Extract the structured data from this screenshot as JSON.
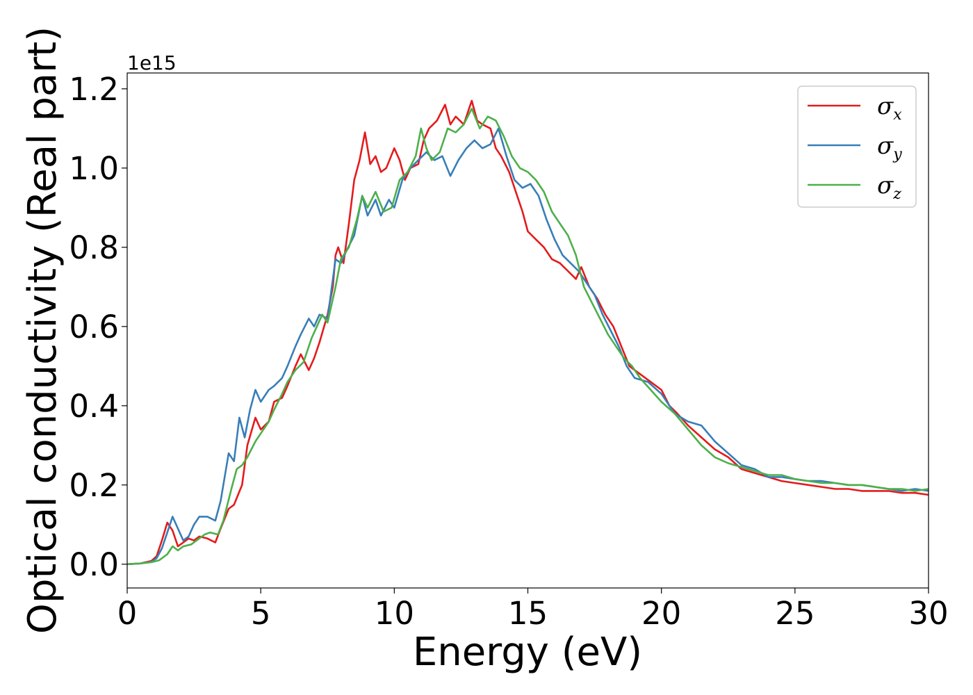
{
  "chart_data": {
    "type": "line",
    "xlabel": "Energy (eV)",
    "ylabel": "Optical conductivity (Real part)",
    "y_offset_label": "1e15",
    "xlim": [
      0,
      30
    ],
    "ylim": [
      -0.06,
      1.24
    ],
    "x_ticks": [
      0,
      5,
      10,
      15,
      20,
      25,
      30
    ],
    "x_tick_labels": [
      "0",
      "5",
      "10",
      "15",
      "20",
      "25",
      "30"
    ],
    "y_ticks": [
      0.0,
      0.2,
      0.4,
      0.6,
      0.8,
      1.0,
      1.2
    ],
    "y_tick_labels": [
      "0.0",
      "0.2",
      "0.4",
      "0.6",
      "0.8",
      "1.0",
      "1.2"
    ],
    "grid": false,
    "legend_position": "top-right",
    "series": [
      {
        "name": "σx",
        "legend_symbol": "σ",
        "legend_subscript": "x",
        "color": "#e41a1c",
        "points": [
          [
            0,
            0
          ],
          [
            0.5,
            0.002
          ],
          [
            0.9,
            0.008
          ],
          [
            1.1,
            0.02
          ],
          [
            1.3,
            0.06
          ],
          [
            1.5,
            0.105
          ],
          [
            1.7,
            0.085
          ],
          [
            1.9,
            0.045
          ],
          [
            2.1,
            0.055
          ],
          [
            2.3,
            0.065
          ],
          [
            2.5,
            0.06
          ],
          [
            2.7,
            0.07
          ],
          [
            3.0,
            0.065
          ],
          [
            3.3,
            0.055
          ],
          [
            3.5,
            0.09
          ],
          [
            3.8,
            0.14
          ],
          [
            4.0,
            0.15
          ],
          [
            4.3,
            0.2
          ],
          [
            4.5,
            0.3
          ],
          [
            4.8,
            0.37
          ],
          [
            5.0,
            0.34
          ],
          [
            5.3,
            0.36
          ],
          [
            5.5,
            0.41
          ],
          [
            5.8,
            0.42
          ],
          [
            6.0,
            0.45
          ],
          [
            6.3,
            0.5
          ],
          [
            6.5,
            0.53
          ],
          [
            6.8,
            0.49
          ],
          [
            7.0,
            0.52
          ],
          [
            7.2,
            0.56
          ],
          [
            7.5,
            0.63
          ],
          [
            7.7,
            0.7
          ],
          [
            7.8,
            0.78
          ],
          [
            7.9,
            0.8
          ],
          [
            8.1,
            0.76
          ],
          [
            8.3,
            0.86
          ],
          [
            8.5,
            0.97
          ],
          [
            8.7,
            1.02
          ],
          [
            8.9,
            1.09
          ],
          [
            9.1,
            1.01
          ],
          [
            9.3,
            1.03
          ],
          [
            9.5,
            0.99
          ],
          [
            9.7,
            1.0
          ],
          [
            10.0,
            1.05
          ],
          [
            10.2,
            1.02
          ],
          [
            10.4,
            0.97
          ],
          [
            10.6,
            1.0
          ],
          [
            10.9,
            1.01
          ],
          [
            11.1,
            1.07
          ],
          [
            11.3,
            1.1
          ],
          [
            11.6,
            1.12
          ],
          [
            11.9,
            1.16
          ],
          [
            12.1,
            1.11
          ],
          [
            12.3,
            1.13
          ],
          [
            12.6,
            1.11
          ],
          [
            12.8,
            1.15
          ],
          [
            12.9,
            1.17
          ],
          [
            13.1,
            1.12
          ],
          [
            13.3,
            1.11
          ],
          [
            13.6,
            1.1
          ],
          [
            13.8,
            1.05
          ],
          [
            14.0,
            1.03
          ],
          [
            14.3,
            0.99
          ],
          [
            14.6,
            0.93
          ],
          [
            14.8,
            0.89
          ],
          [
            15.0,
            0.84
          ],
          [
            15.3,
            0.82
          ],
          [
            15.6,
            0.8
          ],
          [
            15.9,
            0.77
          ],
          [
            16.2,
            0.76
          ],
          [
            16.5,
            0.74
          ],
          [
            16.8,
            0.72
          ],
          [
            17.0,
            0.75
          ],
          [
            17.3,
            0.7
          ],
          [
            17.6,
            0.67
          ],
          [
            17.9,
            0.63
          ],
          [
            18.2,
            0.6
          ],
          [
            18.5,
            0.55
          ],
          [
            18.8,
            0.5
          ],
          [
            19.2,
            0.48
          ],
          [
            19.6,
            0.46
          ],
          [
            20.0,
            0.44
          ],
          [
            20.3,
            0.4
          ],
          [
            20.6,
            0.38
          ],
          [
            21.0,
            0.35
          ],
          [
            21.5,
            0.32
          ],
          [
            22.0,
            0.29
          ],
          [
            22.5,
            0.27
          ],
          [
            23.0,
            0.24
          ],
          [
            23.5,
            0.23
          ],
          [
            24.0,
            0.22
          ],
          [
            24.5,
            0.21
          ],
          [
            25.0,
            0.205
          ],
          [
            25.5,
            0.2
          ],
          [
            26.0,
            0.195
          ],
          [
            26.5,
            0.19
          ],
          [
            27.0,
            0.19
          ],
          [
            27.5,
            0.185
          ],
          [
            28.0,
            0.185
          ],
          [
            28.5,
            0.185
          ],
          [
            29.0,
            0.18
          ],
          [
            29.5,
            0.18
          ],
          [
            30.0,
            0.175
          ]
        ]
      },
      {
        "name": "σy",
        "legend_symbol": "σ",
        "legend_subscript": "y",
        "color": "#377eb8",
        "points": [
          [
            0,
            0
          ],
          [
            0.5,
            0.002
          ],
          [
            0.9,
            0.006
          ],
          [
            1.1,
            0.015
          ],
          [
            1.3,
            0.04
          ],
          [
            1.5,
            0.08
          ],
          [
            1.7,
            0.12
          ],
          [
            1.9,
            0.09
          ],
          [
            2.1,
            0.06
          ],
          [
            2.3,
            0.07
          ],
          [
            2.5,
            0.1
          ],
          [
            2.7,
            0.12
          ],
          [
            3.0,
            0.12
          ],
          [
            3.3,
            0.11
          ],
          [
            3.5,
            0.16
          ],
          [
            3.8,
            0.28
          ],
          [
            4.0,
            0.26
          ],
          [
            4.2,
            0.37
          ],
          [
            4.4,
            0.32
          ],
          [
            4.6,
            0.39
          ],
          [
            4.8,
            0.44
          ],
          [
            5.0,
            0.41
          ],
          [
            5.3,
            0.44
          ],
          [
            5.5,
            0.45
          ],
          [
            5.8,
            0.47
          ],
          [
            6.0,
            0.5
          ],
          [
            6.3,
            0.55
          ],
          [
            6.5,
            0.58
          ],
          [
            6.8,
            0.62
          ],
          [
            7.0,
            0.6
          ],
          [
            7.2,
            0.63
          ],
          [
            7.5,
            0.62
          ],
          [
            7.8,
            0.77
          ],
          [
            8.0,
            0.76
          ],
          [
            8.2,
            0.79
          ],
          [
            8.5,
            0.83
          ],
          [
            8.8,
            0.93
          ],
          [
            9.0,
            0.88
          ],
          [
            9.3,
            0.92
          ],
          [
            9.5,
            0.88
          ],
          [
            9.8,
            0.92
          ],
          [
            10.0,
            0.9
          ],
          [
            10.3,
            0.97
          ],
          [
            10.6,
            1.0
          ],
          [
            10.9,
            1.02
          ],
          [
            11.2,
            1.04
          ],
          [
            11.5,
            1.02
          ],
          [
            11.8,
            1.03
          ],
          [
            12.1,
            0.98
          ],
          [
            12.4,
            1.02
          ],
          [
            12.7,
            1.05
          ],
          [
            13.0,
            1.07
          ],
          [
            13.3,
            1.05
          ],
          [
            13.6,
            1.06
          ],
          [
            13.9,
            1.1
          ],
          [
            14.2,
            1.03
          ],
          [
            14.5,
            0.97
          ],
          [
            14.8,
            0.95
          ],
          [
            15.1,
            0.96
          ],
          [
            15.4,
            0.93
          ],
          [
            15.7,
            0.87
          ],
          [
            16.0,
            0.82
          ],
          [
            16.3,
            0.78
          ],
          [
            16.6,
            0.76
          ],
          [
            16.9,
            0.74
          ],
          [
            17.2,
            0.71
          ],
          [
            17.5,
            0.68
          ],
          [
            17.8,
            0.63
          ],
          [
            18.1,
            0.59
          ],
          [
            18.4,
            0.55
          ],
          [
            18.7,
            0.5
          ],
          [
            19.0,
            0.47
          ],
          [
            19.5,
            0.46
          ],
          [
            20.0,
            0.43
          ],
          [
            20.5,
            0.38
          ],
          [
            21.0,
            0.36
          ],
          [
            21.5,
            0.35
          ],
          [
            22.0,
            0.31
          ],
          [
            22.5,
            0.28
          ],
          [
            23.0,
            0.25
          ],
          [
            23.5,
            0.24
          ],
          [
            24.0,
            0.22
          ],
          [
            24.5,
            0.22
          ],
          [
            25.0,
            0.215
          ],
          [
            25.5,
            0.21
          ],
          [
            26.0,
            0.21
          ],
          [
            26.5,
            0.205
          ],
          [
            27.0,
            0.2
          ],
          [
            27.5,
            0.2
          ],
          [
            28.0,
            0.195
          ],
          [
            28.5,
            0.19
          ],
          [
            29.0,
            0.185
          ],
          [
            29.5,
            0.19
          ],
          [
            30.0,
            0.185
          ]
        ]
      },
      {
        "name": "σz",
        "legend_symbol": "σ",
        "legend_subscript": "z",
        "color": "#4daf4a",
        "points": [
          [
            0,
            0
          ],
          [
            0.5,
            0.002
          ],
          [
            0.9,
            0.005
          ],
          [
            1.2,
            0.01
          ],
          [
            1.5,
            0.025
          ],
          [
            1.7,
            0.045
          ],
          [
            1.9,
            0.035
          ],
          [
            2.1,
            0.045
          ],
          [
            2.4,
            0.05
          ],
          [
            2.6,
            0.06
          ],
          [
            2.9,
            0.075
          ],
          [
            3.1,
            0.08
          ],
          [
            3.4,
            0.075
          ],
          [
            3.6,
            0.11
          ],
          [
            3.9,
            0.19
          ],
          [
            4.1,
            0.24
          ],
          [
            4.3,
            0.25
          ],
          [
            4.5,
            0.27
          ],
          [
            4.8,
            0.31
          ],
          [
            5.0,
            0.33
          ],
          [
            5.3,
            0.36
          ],
          [
            5.5,
            0.39
          ],
          [
            5.8,
            0.43
          ],
          [
            6.0,
            0.46
          ],
          [
            6.3,
            0.49
          ],
          [
            6.6,
            0.51
          ],
          [
            6.9,
            0.57
          ],
          [
            7.1,
            0.6
          ],
          [
            7.3,
            0.63
          ],
          [
            7.5,
            0.61
          ],
          [
            7.8,
            0.7
          ],
          [
            8.0,
            0.77
          ],
          [
            8.3,
            0.8
          ],
          [
            8.6,
            0.87
          ],
          [
            8.8,
            0.93
          ],
          [
            9.0,
            0.9
          ],
          [
            9.3,
            0.94
          ],
          [
            9.6,
            0.89
          ],
          [
            9.9,
            0.9
          ],
          [
            10.2,
            0.97
          ],
          [
            10.5,
            0.99
          ],
          [
            10.8,
            1.03
          ],
          [
            11.0,
            1.1
          ],
          [
            11.2,
            1.05
          ],
          [
            11.4,
            1.02
          ],
          [
            11.7,
            1.04
          ],
          [
            12.0,
            1.1
          ],
          [
            12.3,
            1.09
          ],
          [
            12.6,
            1.11
          ],
          [
            12.9,
            1.15
          ],
          [
            13.2,
            1.1
          ],
          [
            13.5,
            1.13
          ],
          [
            13.8,
            1.12
          ],
          [
            14.1,
            1.08
          ],
          [
            14.4,
            1.03
          ],
          [
            14.7,
            1.0
          ],
          [
            15.0,
            0.99
          ],
          [
            15.3,
            0.97
          ],
          [
            15.6,
            0.94
          ],
          [
            15.9,
            0.89
          ],
          [
            16.2,
            0.86
          ],
          [
            16.5,
            0.83
          ],
          [
            16.8,
            0.78
          ],
          [
            17.1,
            0.7
          ],
          [
            17.4,
            0.66
          ],
          [
            17.7,
            0.62
          ],
          [
            18.0,
            0.58
          ],
          [
            18.3,
            0.55
          ],
          [
            18.6,
            0.52
          ],
          [
            18.9,
            0.5
          ],
          [
            19.2,
            0.47
          ],
          [
            19.6,
            0.44
          ],
          [
            20.0,
            0.41
          ],
          [
            20.5,
            0.38
          ],
          [
            21.0,
            0.34
          ],
          [
            21.5,
            0.3
          ],
          [
            22.0,
            0.27
          ],
          [
            22.5,
            0.255
          ],
          [
            23.0,
            0.245
          ],
          [
            23.5,
            0.235
          ],
          [
            24.0,
            0.225
          ],
          [
            24.5,
            0.225
          ],
          [
            25.0,
            0.215
          ],
          [
            25.5,
            0.21
          ],
          [
            26.0,
            0.205
          ],
          [
            26.5,
            0.205
          ],
          [
            27.0,
            0.2
          ],
          [
            27.5,
            0.2
          ],
          [
            28.0,
            0.195
          ],
          [
            28.5,
            0.19
          ],
          [
            29.0,
            0.19
          ],
          [
            29.5,
            0.185
          ],
          [
            30.0,
            0.19
          ]
        ]
      }
    ]
  }
}
